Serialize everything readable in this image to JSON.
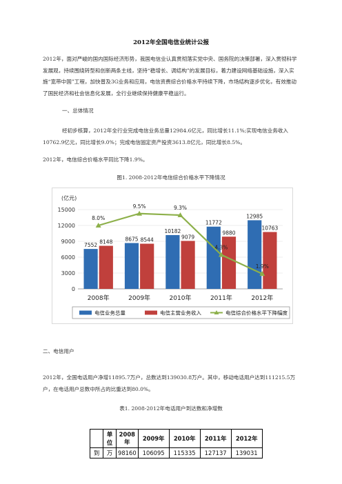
{
  "document": {
    "title": "2012年全国电信业统计公报",
    "intro": "2012年，面对严峻的国内国际经济形势，我国电信业认真贯彻落实党中央、国务院的决策部署，深入贯彻科学发展观，持续围绕转型和创新两条主线，坚持“稳增长、调结构”的发展目标，着力建设网络基础设施，深入实施“宽带中国”工程，加快普及3G业务和应用，电信资费综合价格水平持续下降，市场结构逐步优化，有效推动了国民经济和社会信息化发展，全行业继续保持健康平稳运行。",
    "section1": "一、总体情况",
    "para2": "经初步核算，2012年全行业完成电信业务总量12984.6亿元，同比增长11.1%;实现电信业务收入10762.9亿元，同比增长9.0%；完成电信固定资产投资3613.8亿元，同比增长8.5%。",
    "para3": "2012年，电信综合价格水平同比下降1.9%。",
    "figure_caption": "图1. 2008-2012年电信综合价格水平下降情况",
    "section2": "二、电信用户",
    "para4": "2012年，全国电话用户净增11895.7万户，总数达到139030.8万户。其中，移动电话用户达到111215.5万户，在电话用户总数中所占的比重达到80.0%。",
    "table_caption": "表1. 2008-2012年电话用户到达数和净增数"
  },
  "chart_data": {
    "type": "bar",
    "y_label": "(亿元)",
    "categories": [
      "2008年",
      "2009年",
      "2010年",
      "2011年",
      "2012年"
    ],
    "series": [
      {
        "name": "电信业务总量",
        "color": "#2f6db3",
        "values": [
          7552,
          8675,
          10182,
          11772,
          12985
        ]
      },
      {
        "name": "电信主营业务收入",
        "color": "#c0403c",
        "values": [
          8148,
          8544,
          9079,
          9880,
          10763
        ]
      },
      {
        "name": "电信综合价格水平下降幅度",
        "color": "#8db04a",
        "type": "line",
        "axis": "y2",
        "values": [
          8.0,
          9.5,
          9.3,
          4.3,
          1.9
        ],
        "value_labels": [
          "8.0%",
          "9.5%",
          "9.3%",
          "4.3%",
          "1.9%"
        ]
      }
    ],
    "ylim": [
      0,
      15000
    ],
    "yticks": [
      0,
      3000,
      6000,
      9000,
      12000,
      15000
    ],
    "y2lim": [
      0,
      10
    ],
    "grid": true,
    "legend": "bottom"
  },
  "table": {
    "header": [
      "单位",
      "2008年",
      "2009年",
      "2010年",
      "2011年",
      "2012年"
    ],
    "rows": [
      [
        "到",
        "万",
        98160,
        106095,
        115335,
        127137,
        139031
      ]
    ]
  }
}
